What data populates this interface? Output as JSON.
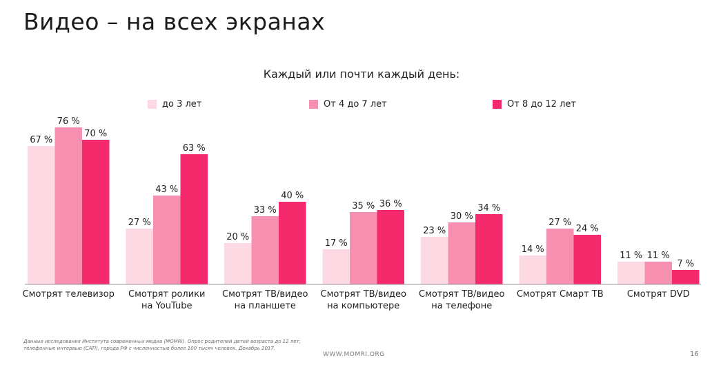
{
  "slide": {
    "title": "Видео – на всех экранах",
    "footnote": "Данные исследования Института современных медиа (MOMRI). Опрос родителей детей возраста до 12 лет, телефонные интервью (CATI), города РФ с численностью более 100 тысяч человек. Декабрь 2017.",
    "site": "WWW.MOMRI.ORG",
    "page_number": "16"
  },
  "chart_data": {
    "type": "bar",
    "title": "Каждый или почти каждый день:",
    "xlabel": "",
    "ylabel": "",
    "ylim": [
      0,
      80
    ],
    "grid": false,
    "legend_position": "top",
    "value_suffix": " %",
    "categories": [
      "Смотрят телевизор",
      "Смотрят ролики на YouTube",
      "Смотрят ТВ/видео на планшете",
      "Смотрят ТВ/видео на компьютере",
      "Смотрят ТВ/видео на телефоне",
      "Смотрят Смарт ТВ",
      "Смотрят DVD"
    ],
    "category_lines": [
      [
        "Смотрят телевизор"
      ],
      [
        "Смотрят ролики",
        "на YouTube"
      ],
      [
        "Смотрят ТВ/видео",
        "на планшете"
      ],
      [
        "Смотрят ТВ/видео",
        "на компьютере"
      ],
      [
        "Смотрят ТВ/видео",
        "на телефоне"
      ],
      [
        "Смотрят Смарт ТВ"
      ],
      [
        "Смотрят DVD"
      ]
    ],
    "series": [
      {
        "name": "до 3 лет",
        "color": "#fdd9e3",
        "values": [
          67,
          27,
          20,
          17,
          23,
          14,
          11
        ]
      },
      {
        "name": "От 4 до 7 лет",
        "color": "#f78fb0",
        "values": [
          76,
          43,
          33,
          35,
          30,
          27,
          11
        ]
      },
      {
        "name": "От 8 до 12 лет",
        "color": "#f52a6d",
        "values": [
          70,
          63,
          40,
          36,
          34,
          24,
          7
        ]
      }
    ]
  }
}
